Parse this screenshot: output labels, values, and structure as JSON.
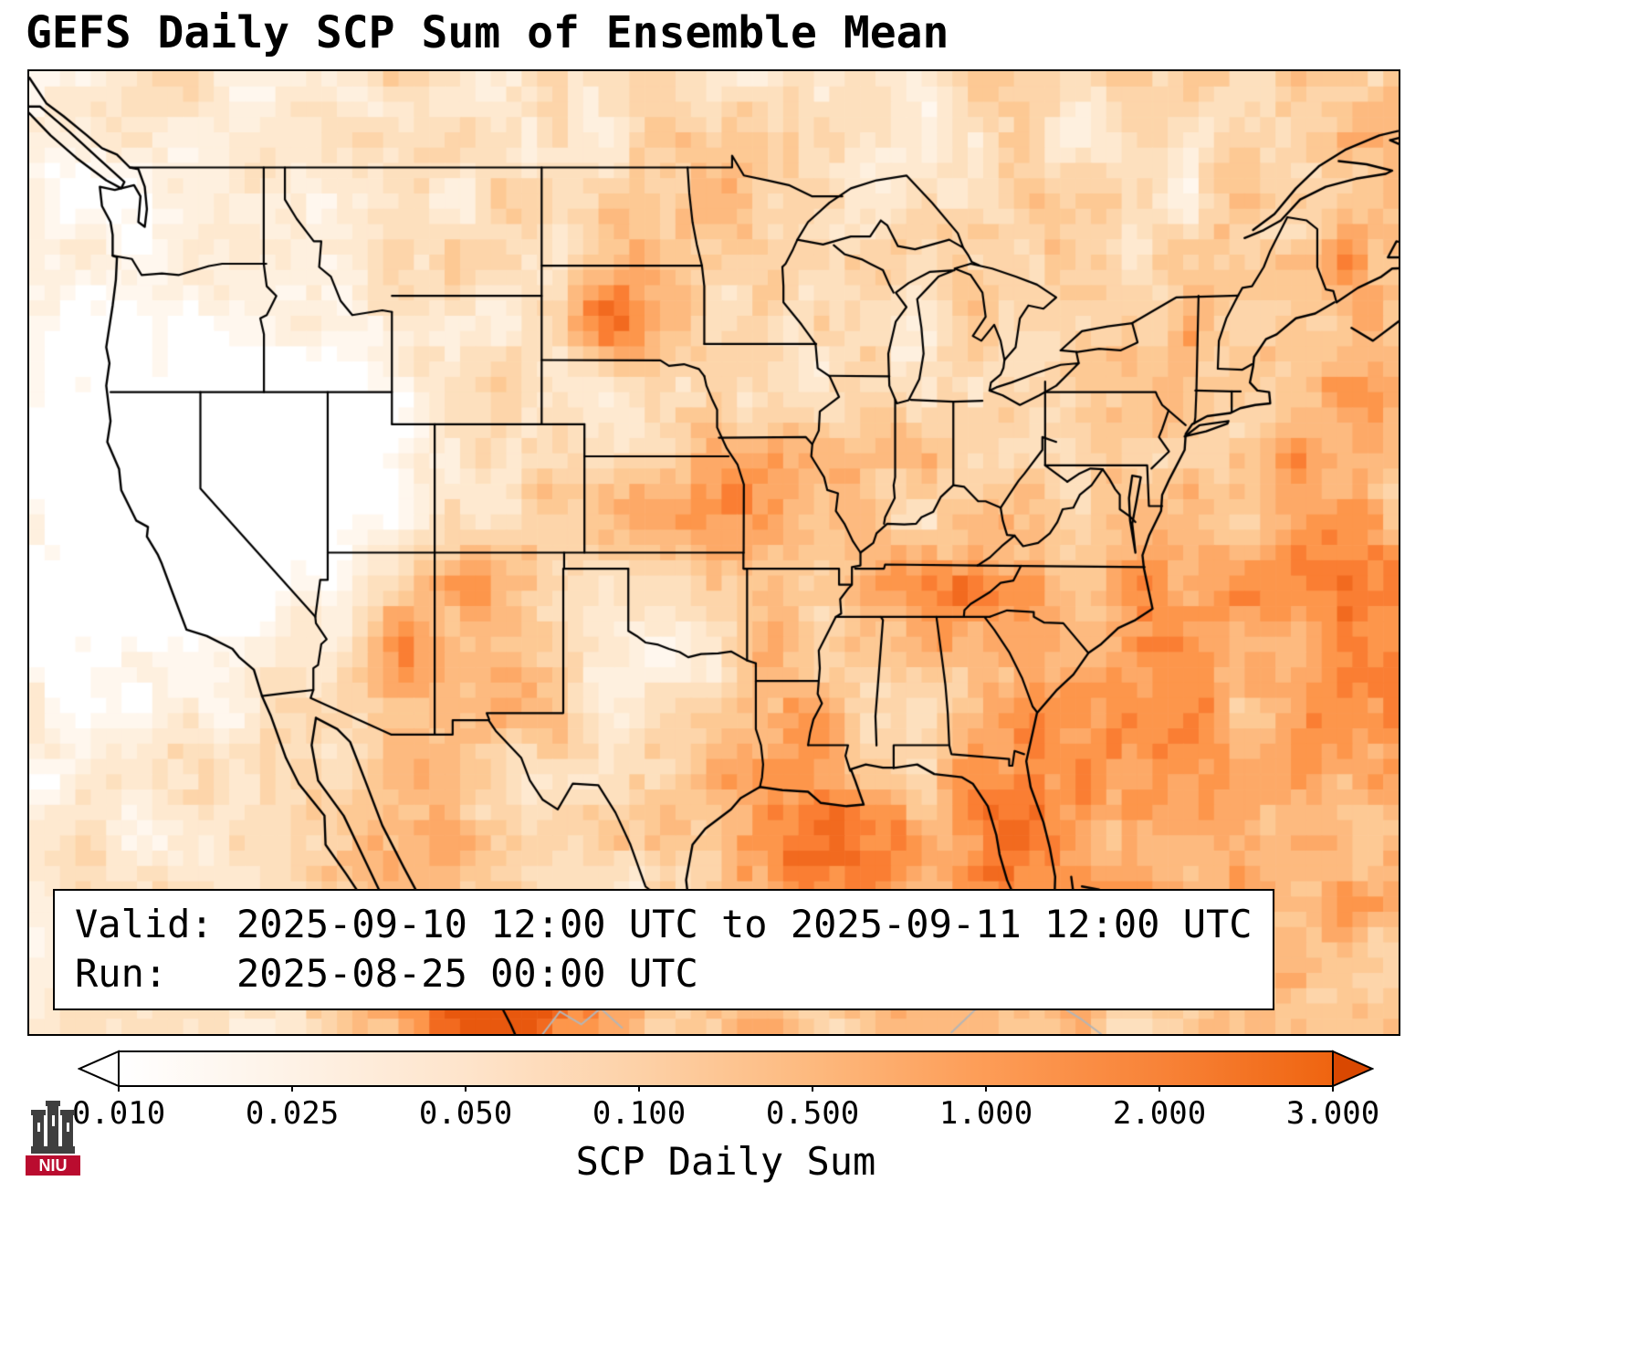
{
  "title": "GEFS Daily SCP Sum of Ensemble Mean",
  "annotation": {
    "line1": "Valid: 2025-09-10 12:00 UTC to 2025-09-11 12:00 UTC",
    "line2": "Run:   2025-08-25 00:00 UTC"
  },
  "colorbar": {
    "label": "SCP Daily Sum",
    "ticks": [
      "0.010",
      "0.025",
      "0.050",
      "0.100",
      "0.500",
      "1.000",
      "2.000",
      "3.000"
    ],
    "under_color": "#ffffff",
    "over_color": "#d94801",
    "gradient": [
      "#ffffff",
      "#fef2e6",
      "#fee4cb",
      "#fdd1a7",
      "#fdb97e",
      "#fd9c56",
      "#f88338",
      "#ef6410"
    ]
  },
  "logo": {
    "text": "NIU",
    "band_color": "#ba0c2f",
    "castle_color": "#3f3f3f"
  },
  "map": {
    "outline_color": "#000000",
    "secondary_coast_color": "#b5b5b5"
  },
  "chart_data": {
    "type": "heatmap",
    "title": "GEFS Daily SCP Sum of Ensemble Mean",
    "colorbar_label": "SCP Daily Sum",
    "colorbar_ticks": [
      0.01,
      0.025,
      0.05,
      0.1,
      0.5,
      1.0,
      2.0,
      3.0
    ],
    "scale": "discrete log-spaced, matplotlib Oranges colormap with dark-orange over-arrow and white under-arrow",
    "valid_period": "2025-09-10 12:00 UTC to 2025-09-11 12:00 UTC",
    "run_time": "2025-08-25 00:00 UTC",
    "region": "Contiguous United States with southern Canada, northern Mexico and western Atlantic",
    "high_value_regions": [
      "Gulf of Mexico",
      "western Atlantic off the Southeast coast",
      "Kansas-Missouri corridor",
      "South Dakota",
      "Arizona-New Mexico",
      "Pacific coast of northwest Mexico (darkest strip at bottom edge)",
      "Florida and Gulf of California"
    ],
    "low_value_regions": [
      "Great Basin (Nevada/Utah) near zero",
      "central California",
      "offshore Pacific",
      "north-central Texas",
      "Mississippi/Alabama interior"
    ]
  }
}
